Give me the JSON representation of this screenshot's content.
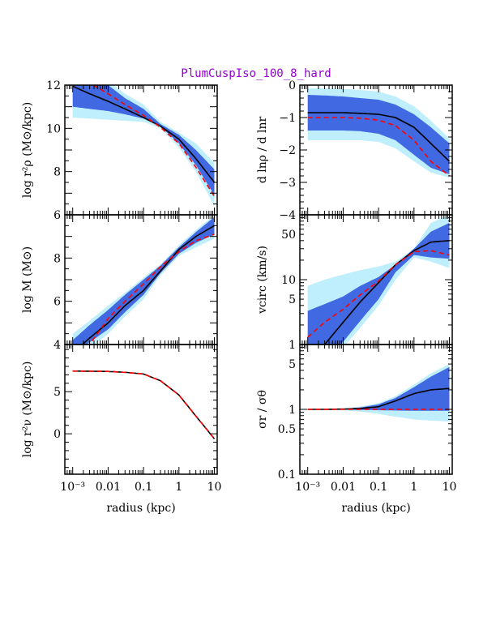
{
  "title": "PlumCuspIso_100_8_hard",
  "colors": {
    "band_outer": "#bfeefc",
    "band_inner": "#4169e1",
    "median_line": "#000000",
    "true_line": "#ff0000",
    "title": "#9400d3"
  },
  "chart_data": [
    {
      "type": "area",
      "xscale": "log",
      "yscale": "linear",
      "xlim": [
        0.0006,
        12
      ],
      "ylim": [
        6,
        12
      ],
      "ylabel": "log r²ρ (M⊙/kpc)",
      "xlabel": "",
      "yticks": [
        6,
        8,
        10,
        12
      ],
      "ytick_labels": [
        "6",
        "8",
        "10",
        "12"
      ],
      "yminor": 0.5,
      "x": [
        0.001,
        0.003,
        0.01,
        0.03,
        0.1,
        0.3,
        1,
        3,
        10
      ],
      "band_outer": {
        "lower": [
          10.5,
          10.45,
          10.4,
          10.35,
          10.3,
          10.0,
          9.1,
          8.0,
          6.4
        ],
        "upper": [
          12.5,
          12.4,
          12.2,
          11.6,
          11.1,
          10.3,
          9.8,
          9.3,
          8.4
        ]
      },
      "band_inner": {
        "lower": [
          11.0,
          10.9,
          10.8,
          10.65,
          10.45,
          10.1,
          9.3,
          8.3,
          6.9
        ],
        "upper": [
          12.5,
          12.3,
          12.0,
          11.4,
          10.9,
          10.2,
          9.7,
          9.0,
          8.1
        ]
      },
      "median": [
        11.95,
        11.6,
        11.25,
        10.9,
        10.5,
        10.1,
        9.5,
        8.6,
        7.5
      ],
      "true": [
        12.6,
        12.1,
        11.6,
        11.1,
        10.6,
        10.05,
        9.3,
        8.2,
        6.85
      ]
    },
    {
      "type": "area",
      "xscale": "log",
      "yscale": "linear",
      "xlim": [
        0.0006,
        12
      ],
      "ylim": [
        4,
        10
      ],
      "ylabel": "log M (M⊙)",
      "xlabel": "",
      "yticks": [
        4,
        6,
        8
      ],
      "ytick_labels": [
        "4",
        "6",
        "8"
      ],
      "yminor": 0.5,
      "x": [
        0.001,
        0.003,
        0.01,
        0.03,
        0.1,
        0.3,
        1,
        3,
        10
      ],
      "band_outer": {
        "lower": [
          3.2,
          3.8,
          4.5,
          5.3,
          6.1,
          7.2,
          8.1,
          8.5,
          8.9
        ],
        "upper": [
          4.5,
          5.1,
          5.8,
          6.4,
          7.1,
          7.7,
          8.6,
          9.3,
          10.0
        ]
      },
      "band_inner": {
        "lower": [
          3.5,
          4.1,
          4.7,
          5.5,
          6.3,
          7.3,
          8.2,
          8.7,
          9.1
        ],
        "upper": [
          4.2,
          4.9,
          5.6,
          6.3,
          7.0,
          7.65,
          8.5,
          9.2,
          9.9
        ]
      },
      "median": [
        3.6,
        4.3,
        5.0,
        5.8,
        6.5,
        7.4,
        8.4,
        9.0,
        9.5
      ],
      "true": [
        3.5,
        4.0,
        5.2,
        6.0,
        6.8,
        7.6,
        8.3,
        8.8,
        9.1
      ]
    },
    {
      "type": "line",
      "xscale": "log",
      "yscale": "linear",
      "xlim": [
        0.0006,
        12
      ],
      "ylim": [
        -4.8,
        10.6
      ],
      "ylabel": "log r²ν (M⊙/kpc)",
      "xlabel": "radius (kpc)",
      "yticks": [
        0,
        5
      ],
      "ytick_labels": [
        "0",
        "5"
      ],
      "yminor": 1,
      "xticks": [
        0.001,
        0.01,
        0.1,
        1,
        10
      ],
      "xtick_labels": [
        "10⁻³",
        "0.01",
        "0.1",
        "1",
        "10"
      ],
      "x": [
        0.001,
        0.003,
        0.01,
        0.03,
        0.1,
        0.3,
        1,
        3,
        10
      ],
      "median": [
        7.45,
        7.43,
        7.4,
        7.3,
        7.1,
        6.3,
        4.6,
        2.1,
        -0.6
      ],
      "true": [
        7.45,
        7.43,
        7.4,
        7.3,
        7.1,
        6.3,
        4.6,
        2.1,
        -0.6
      ]
    },
    {
      "type": "area",
      "xscale": "log",
      "yscale": "linear",
      "xlim": [
        0.0006,
        12
      ],
      "ylim": [
        -4,
        0
      ],
      "ylabel": "d lnρ / d lnr",
      "xlabel": "",
      "yticks": [
        0,
        -1,
        -2,
        -3,
        -4
      ],
      "ytick_labels": [
        "0",
        "−1",
        "−2",
        "−3",
        "−4"
      ],
      "yminor": 0.2,
      "x": [
        0.001,
        0.003,
        0.01,
        0.03,
        0.1,
        0.3,
        1,
        3,
        10
      ],
      "band_outer": {
        "lower": [
          -1.7,
          -1.7,
          -1.7,
          -1.7,
          -1.75,
          -1.95,
          -2.35,
          -2.7,
          -2.85
        ],
        "upper": [
          -0.1,
          -0.1,
          -0.12,
          -0.15,
          -0.2,
          -0.35,
          -0.65,
          -1.1,
          -1.65
        ]
      },
      "band_inner": {
        "lower": [
          -1.4,
          -1.4,
          -1.4,
          -1.42,
          -1.5,
          -1.7,
          -2.15,
          -2.55,
          -2.75
        ],
        "upper": [
          -0.3,
          -0.32,
          -0.35,
          -0.4,
          -0.45,
          -0.6,
          -0.9,
          -1.3,
          -1.8
        ]
      },
      "median": [
        -0.85,
        -0.85,
        -0.85,
        -0.87,
        -0.9,
        -1.0,
        -1.3,
        -1.8,
        -2.35
      ],
      "true": [
        -1.0,
        -1.0,
        -1.0,
        -1.02,
        -1.08,
        -1.25,
        -1.7,
        -2.35,
        -2.8
      ]
    },
    {
      "type": "area",
      "xscale": "log",
      "yscale": "log",
      "xlim": [
        0.0006,
        12
      ],
      "ylim": [
        1,
        100
      ],
      "ylabel": "vcirc (km/s)",
      "xlabel": "",
      "yticks": [
        1,
        5,
        10,
        50
      ],
      "ytick_labels": [
        "1",
        "5",
        "10",
        "50"
      ],
      "x": [
        0.001,
        0.003,
        0.01,
        0.03,
        0.1,
        0.3,
        1,
        3,
        10
      ],
      "band_outer": {
        "lower": [
          0.3,
          0.5,
          0.9,
          1.8,
          4,
          10,
          22,
          19,
          15
        ],
        "upper": [
          8,
          10,
          12,
          14,
          16,
          19,
          30,
          75,
          100
        ]
      },
      "band_inner": {
        "lower": [
          0.5,
          0.7,
          1.1,
          2.3,
          5,
          13,
          24,
          22,
          21
        ],
        "upper": [
          3.3,
          4.2,
          5.5,
          8,
          11,
          17,
          30,
          55,
          75
        ]
      },
      "median": [
        0.8,
        1.0,
        2.2,
        4.5,
        9,
        17,
        28,
        38,
        40
      ],
      "true": [
        1.3,
        2.2,
        3.5,
        5.8,
        9.5,
        17,
        27,
        28,
        24
      ]
    },
    {
      "type": "area",
      "xscale": "log",
      "yscale": "log",
      "xlim": [
        0.0006,
        12
      ],
      "ylim": [
        0.1,
        10
      ],
      "ylabel": "σr / σθ",
      "xlabel": "radius (kpc)",
      "yticks": [
        0.1,
        0.5,
        1,
        5
      ],
      "ytick_labels": [
        "0.1",
        "0.5",
        "1",
        "5"
      ],
      "xticks": [
        0.001,
        0.01,
        0.1,
        1,
        10
      ],
      "xtick_labels": [
        "10⁻³",
        "0.01",
        "0.1",
        "1",
        "10"
      ],
      "x": [
        0.001,
        0.003,
        0.01,
        0.03,
        0.1,
        0.3,
        1,
        3,
        10
      ],
      "band_outer": {
        "lower": [
          1,
          0.99,
          0.97,
          0.92,
          0.85,
          0.77,
          0.7,
          0.67,
          0.65
        ],
        "upper": [
          1,
          1.01,
          1.03,
          1.1,
          1.25,
          1.6,
          2.4,
          3.6,
          5.0
        ]
      },
      "band_inner": {
        "lower": [
          1,
          1,
          0.99,
          0.98,
          0.97,
          0.96,
          0.95,
          0.95,
          0.95
        ],
        "upper": [
          1,
          1.01,
          1.02,
          1.07,
          1.2,
          1.5,
          2.2,
          3.2,
          4.5
        ]
      },
      "median": [
        1,
        1,
        1.01,
        1.03,
        1.1,
        1.35,
        1.75,
        2.0,
        2.1
      ],
      "true": [
        1,
        1,
        1,
        1,
        1,
        1,
        1,
        1,
        1
      ]
    }
  ]
}
